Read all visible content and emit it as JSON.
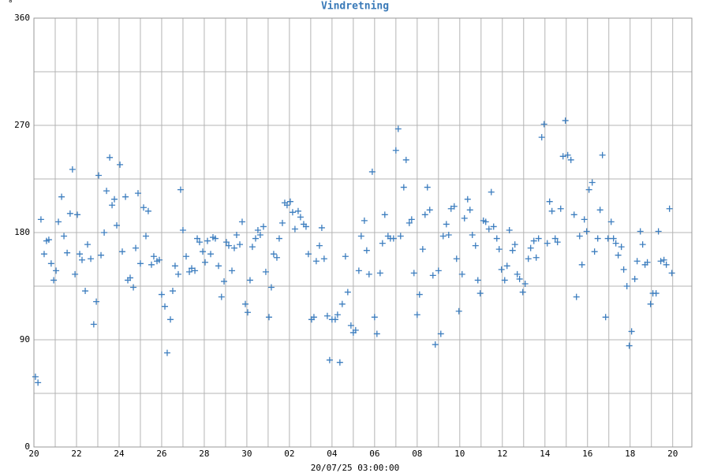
{
  "chart_data": {
    "type": "scatter",
    "title": "Vindretning",
    "y_unit": "°",
    "x_label": "20/07/25 03:00:00",
    "color": "#3d7ebf",
    "grid": true,
    "xlim": [
      0,
      30.9
    ],
    "ylim": [
      0,
      360
    ],
    "xticks": [
      {
        "value": 0,
        "label": "20"
      },
      {
        "value": 2,
        "label": "22"
      },
      {
        "value": 4,
        "label": "24"
      },
      {
        "value": 6,
        "label": "26"
      },
      {
        "value": 8,
        "label": "28"
      },
      {
        "value": 10,
        "label": "30"
      },
      {
        "value": 12,
        "label": "02"
      },
      {
        "value": 14,
        "label": "04"
      },
      {
        "value": 16,
        "label": "06"
      },
      {
        "value": 18,
        "label": "08"
      },
      {
        "value": 20,
        "label": "10"
      },
      {
        "value": 22,
        "label": "12"
      },
      {
        "value": 24,
        "label": "14"
      },
      {
        "value": 26,
        "label": "16"
      },
      {
        "value": 28,
        "label": "18"
      },
      {
        "value": 30,
        "label": "20"
      }
    ],
    "x_minor_ticks": [
      1,
      3,
      5,
      7,
      9,
      11,
      13,
      15,
      17,
      19,
      21,
      23,
      25,
      27,
      29
    ],
    "yticks": [
      0,
      90,
      180,
      270,
      360
    ],
    "y_minor_ticks": [
      45,
      135,
      225,
      315
    ],
    "x": [
      0.07,
      0.19,
      0.33,
      0.48,
      0.59,
      0.7,
      0.81,
      0.93,
      1.04,
      1.15,
      1.3,
      1.41,
      1.56,
      1.7,
      1.81,
      1.93,
      2.04,
      2.15,
      2.26,
      2.41,
      2.52,
      2.67,
      2.81,
      2.93,
      3.04,
      3.15,
      3.3,
      3.41,
      3.56,
      3.67,
      3.78,
      3.89,
      4.04,
      4.15,
      4.3,
      4.41,
      4.52,
      4.67,
      4.78,
      4.89,
      5.0,
      5.15,
      5.26,
      5.37,
      5.52,
      5.63,
      5.78,
      5.89,
      6.0,
      6.15,
      6.26,
      6.41,
      6.52,
      6.63,
      6.78,
      6.89,
      7.0,
      7.15,
      7.3,
      7.41,
      7.56,
      7.67,
      7.78,
      7.93,
      8.04,
      8.15,
      8.3,
      8.41,
      8.52,
      8.67,
      8.81,
      8.93,
      9.04,
      9.15,
      9.3,
      9.41,
      9.52,
      9.67,
      9.78,
      9.93,
      10.04,
      10.15,
      10.26,
      10.41,
      10.52,
      10.63,
      10.78,
      10.89,
      11.04,
      11.15,
      11.26,
      11.41,
      11.52,
      11.67,
      11.78,
      11.89,
      12.04,
      12.15,
      12.26,
      12.41,
      12.52,
      12.67,
      12.78,
      12.89,
      13.04,
      13.15,
      13.26,
      13.41,
      13.52,
      13.63,
      13.78,
      13.89,
      14.0,
      14.15,
      14.26,
      14.37,
      14.48,
      14.63,
      14.74,
      14.89,
      15.0,
      15.11,
      15.26,
      15.37,
      15.52,
      15.63,
      15.74,
      15.89,
      16.0,
      16.11,
      16.26,
      16.37,
      16.48,
      16.63,
      16.74,
      16.89,
      17.0,
      17.11,
      17.22,
      17.37,
      17.48,
      17.63,
      17.74,
      17.85,
      18.0,
      18.11,
      18.26,
      18.37,
      18.48,
      18.59,
      18.74,
      18.85,
      19.0,
      19.11,
      19.22,
      19.37,
      19.48,
      19.59,
      19.74,
      19.85,
      19.96,
      20.11,
      20.22,
      20.37,
      20.48,
      20.59,
      20.74,
      20.85,
      20.96,
      21.11,
      21.22,
      21.37,
      21.48,
      21.59,
      21.74,
      21.85,
      21.96,
      22.11,
      22.22,
      22.33,
      22.48,
      22.59,
      22.7,
      22.81,
      22.96,
      23.07,
      23.22,
      23.33,
      23.48,
      23.59,
      23.7,
      23.85,
      23.96,
      24.11,
      24.22,
      24.33,
      24.48,
      24.59,
      24.74,
      24.85,
      24.96,
      25.07,
      25.22,
      25.37,
      25.48,
      25.63,
      25.74,
      25.85,
      25.96,
      26.07,
      26.22,
      26.33,
      26.48,
      26.59,
      26.7,
      26.85,
      26.96,
      27.11,
      27.22,
      27.33,
      27.44,
      27.59,
      27.7,
      27.85,
      27.96,
      28.07,
      28.22,
      28.33,
      28.48,
      28.59,
      28.7,
      28.81,
      28.96,
      29.07,
      29.22,
      29.33,
      29.44,
      29.59,
      29.7,
      29.85,
      29.96
    ],
    "values": [
      59,
      54,
      191,
      162,
      173,
      174,
      154,
      140,
      148,
      189,
      210,
      177,
      163,
      196,
      233,
      145,
      195,
      162,
      157,
      131,
      170,
      158,
      103,
      122,
      228,
      161,
      180,
      215,
      243,
      203,
      208,
      186,
      237,
      164,
      210,
      140,
      142,
      134,
      167,
      213,
      154,
      201,
      177,
      198,
      153,
      160,
      156,
      157,
      128,
      118,
      79,
      107,
      131,
      152,
      145,
      216,
      182,
      160,
      147,
      150,
      148,
      175,
      172,
      164,
      155,
      173,
      162,
      176,
      175,
      152,
      126,
      139,
      172,
      169,
      148,
      167,
      178,
      170,
      189,
      120,
      113,
      140,
      168,
      175,
      182,
      178,
      185,
      147,
      109,
      134,
      162,
      159,
      175,
      188,
      205,
      203,
      206,
      197,
      183,
      198,
      193,
      187,
      185,
      162,
      107,
      109,
      156,
      169,
      184,
      158,
      110,
      73,
      107,
      107,
      111,
      71,
      120,
      160,
      130,
      102,
      96,
      98,
      148,
      177,
      190,
      165,
      145,
      231,
      109,
      95,
      146,
      171,
      195,
      177,
      175,
      175,
      249,
      267,
      177,
      218,
      241,
      188,
      191,
      146,
      111,
      128,
      166,
      195,
      218,
      199,
      144,
      86,
      148,
      95,
      177,
      187,
      178,
      200,
      202,
      158,
      114,
      145,
      192,
      208,
      199,
      178,
      169,
      140,
      129,
      190,
      189,
      183,
      214,
      185,
      175,
      166,
      149,
      140,
      152,
      182,
      165,
      170,
      145,
      141,
      130,
      137,
      158,
      167,
      173,
      159,
      175,
      260,
      271,
      171,
      206,
      198,
      175,
      172,
      200,
      244,
      274,
      245,
      241,
      195,
      126,
      177,
      153,
      191,
      181,
      216,
      222,
      164,
      175,
      199,
      245,
      109,
      175,
      189,
      175,
      171,
      161,
      168,
      149,
      135,
      85,
      97,
      141,
      156,
      181,
      170,
      153,
      155,
      120,
      129,
      129,
      181,
      156,
      157,
      153,
      200,
      146
    ]
  }
}
